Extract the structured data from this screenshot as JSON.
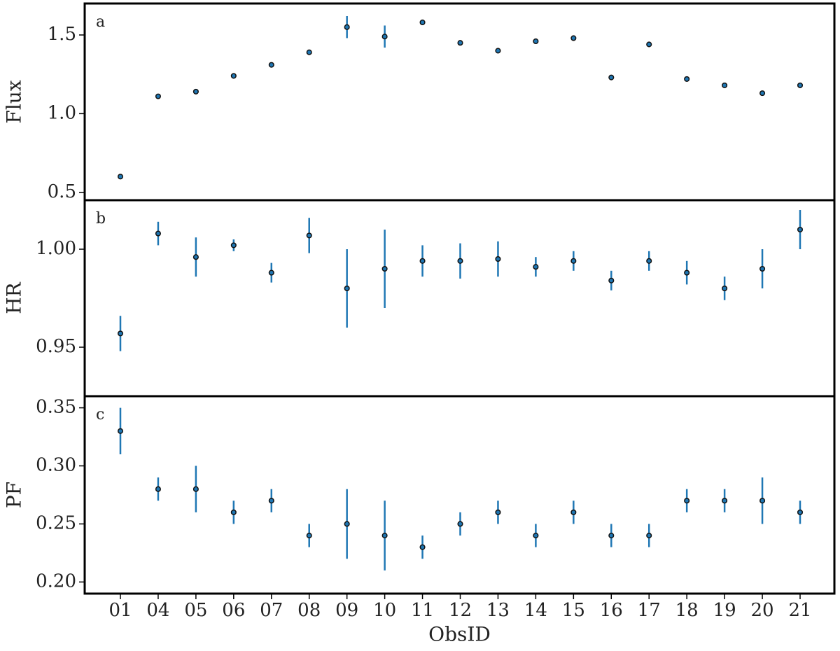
{
  "chart_data": [
    {
      "type": "errorbar",
      "annotation": "a",
      "y_label": "Flux",
      "color": "#1f77b4",
      "values": [
        0.6,
        1.11,
        1.14,
        1.24,
        1.31,
        1.39,
        1.55,
        1.49,
        1.58,
        1.45,
        1.4,
        1.46,
        1.48,
        1.23,
        1.44,
        1.22,
        1.18,
        1.13,
        1.18
      ],
      "errors": [
        0.01,
        0.01,
        0.01,
        0.01,
        0.01,
        0.01,
        0.07,
        0.07,
        0.01,
        0.01,
        0.01,
        0.01,
        0.01,
        0.01,
        0.01,
        0.01,
        0.01,
        0.01,
        0.01
      ],
      "ylim": [
        0.45,
        1.7
      ],
      "yticks": [
        0.5,
        {
          "value": 1.0,
          "label": "1.0"
        },
        1.5
      ]
    },
    {
      "type": "errorbar",
      "annotation": "b",
      "y_label": "HR",
      "color": "#1f77b4",
      "values": [
        0.957,
        1.008,
        0.996,
        1.002,
        0.988,
        1.007,
        0.98,
        0.99,
        0.994,
        0.994,
        0.995,
        0.991,
        0.994,
        0.984,
        0.994,
        0.988,
        0.98,
        0.99,
        1.01
      ],
      "errors": [
        0.009,
        0.006,
        0.01,
        0.003,
        0.005,
        0.009,
        0.02,
        0.02,
        0.008,
        0.009,
        0.009,
        0.005,
        0.005,
        0.005,
        0.005,
        0.006,
        0.006,
        0.01,
        0.01
      ],
      "ylim": [
        0.925,
        1.025
      ],
      "yticks": [
        0.95,
        {
          "value": 1.0,
          "label": "1.00"
        }
      ]
    },
    {
      "type": "errorbar",
      "annotation": "c",
      "y_label": "PF",
      "x_label": "ObsID",
      "color": "#1f77b4",
      "categories": [
        "01",
        "04",
        "05",
        "06",
        "07",
        "08",
        "09",
        "10",
        "11",
        "12",
        "13",
        "14",
        "15",
        "16",
        "17",
        "18",
        "19",
        "20",
        "21"
      ],
      "values": [
        0.33,
        0.28,
        0.28,
        0.26,
        0.27,
        0.24,
        0.25,
        0.24,
        0.23,
        0.25,
        0.26,
        0.24,
        0.26,
        0.24,
        0.24,
        0.27,
        0.27,
        0.27,
        0.26
      ],
      "errors": [
        0.02,
        0.01,
        0.02,
        0.01,
        0.01,
        0.01,
        0.03,
        0.03,
        0.01,
        0.01,
        0.01,
        0.01,
        0.01,
        0.01,
        0.01,
        0.01,
        0.01,
        0.02,
        0.01
      ],
      "ylim": [
        0.19,
        0.36
      ],
      "yticks": [
        {
          "value": 0.2,
          "label": "0.20"
        },
        0.25,
        {
          "value": 0.3,
          "label": "0.30"
        },
        0.35
      ]
    }
  ]
}
